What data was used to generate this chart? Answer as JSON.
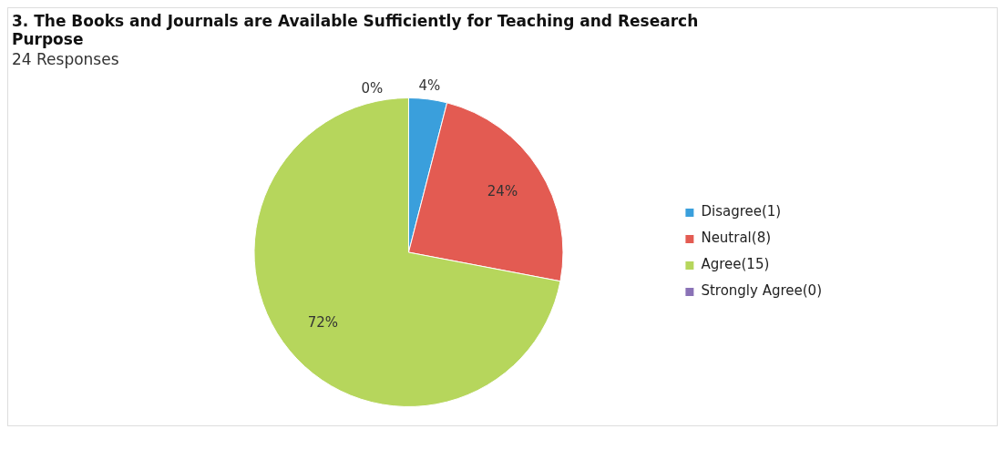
{
  "chart_data": {
    "type": "pie",
    "title": "3. The Books and Journals are Available Sufficiently for Teaching and Research Purpose",
    "subtitle": "24 Responses",
    "categories": [
      "Disagree(1)",
      "Neutral(8)",
      "Agree(15)",
      "Strongly Agree(0)"
    ],
    "values": [
      4,
      24,
      72,
      0
    ],
    "colors": [
      "#3a9fdc",
      "#e35b52",
      "#b6d65c",
      "#8a72b6"
    ],
    "value_labels": [
      "4%",
      "24%",
      "72%",
      "0%"
    ],
    "legend": "right"
  }
}
